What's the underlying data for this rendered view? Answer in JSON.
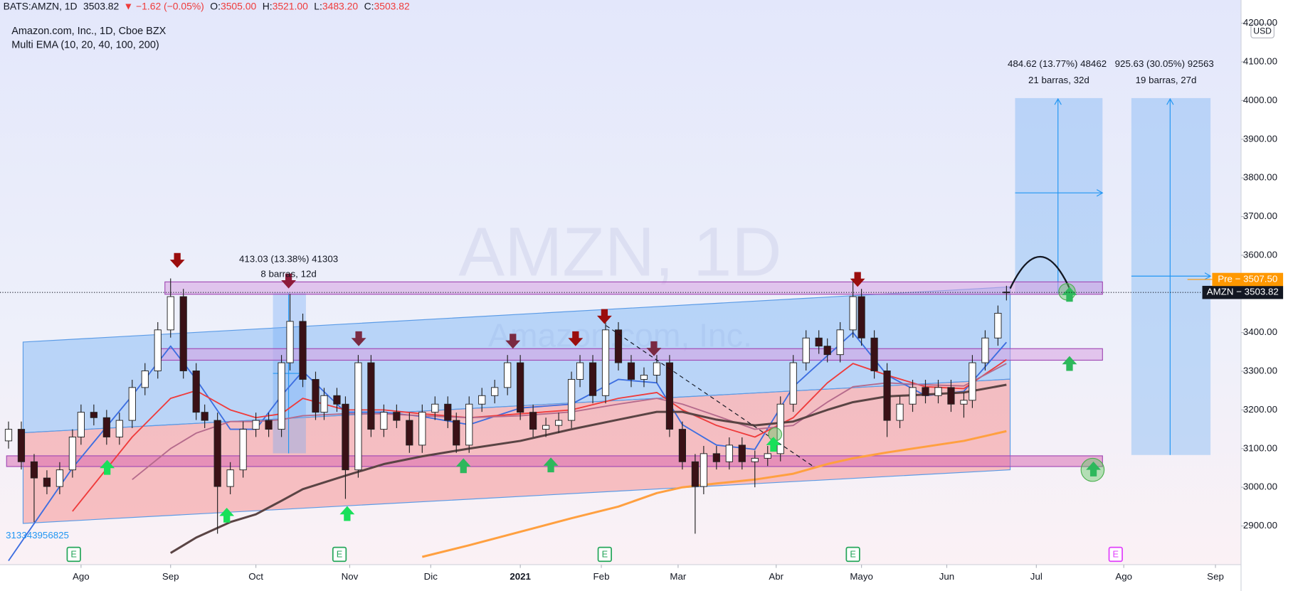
{
  "header": {
    "symbol": "BATS:AMZN, 1D",
    "last": "3503.82",
    "change": "▼ −1.62 (−0.05%)",
    "ohlc": [
      {
        "label": "O:",
        "value": "3505.00"
      },
      {
        "label": "H:",
        "value": "3521.00"
      },
      {
        "label": "L:",
        "value": "3483.20"
      },
      {
        "label": "C:",
        "value": "3503.82"
      }
    ]
  },
  "chart_data": {
    "type": "candlestick",
    "title": "Amazon.com, Inc., 1D, Cboe BZX",
    "subtitle": "Multi EMA (10, 20, 40, 100, 200)",
    "watermark": "AMZN, 1D",
    "watermark_sub": "Amazon.com, Inc.",
    "y_unit": "USD",
    "left_label": "313343956825",
    "up_color": "#ffffff",
    "down_color": "#3a1116",
    "x": [
      0,
      3,
      6,
      9,
      12,
      15,
      17,
      20,
      23,
      26,
      29,
      32,
      35,
      38,
      41,
      44,
      46,
      49,
      52,
      55,
      58,
      61,
      64,
      66,
      69,
      72,
      74,
      77,
      79,
      82,
      85,
      88,
      91,
      94,
      97,
      100,
      103,
      105,
      108,
      111,
      114,
      117,
      120,
      123,
      126,
      129,
      132,
      134,
      137,
      140,
      143,
      146,
      149,
      152,
      155,
      158,
      161,
      163,
      166,
      169,
      172,
      175,
      178,
      181,
      184,
      187,
      190,
      192,
      195,
      198,
      200,
      203,
      206,
      209,
      212,
      215,
      218,
      221,
      224,
      226,
      229,
      232,
      234
    ],
    "open": [
      3120,
      3150,
      3066,
      3024,
      3002,
      3045,
      3130,
      3194,
      3180,
      3130,
      3173,
      3258,
      3301,
      3407,
      3493,
      3301,
      3194,
      3173,
      3002,
      3045,
      3150,
      3173,
      3150,
      3322,
      3429,
      3279,
      3194,
      3237,
      3215,
      3045,
      3322,
      3150,
      3194,
      3173,
      3109,
      3194,
      3215,
      3173,
      3109,
      3215,
      3237,
      3258,
      3322,
      3194,
      3150,
      3160,
      3173,
      3279,
      3322,
      3237,
      3407,
      3322,
      3279,
      3290,
      3322,
      3150,
      3066,
      3002,
      3087,
      3066,
      3109,
      3066,
      3075,
      3087,
      3215,
      3322,
      3386,
      3365,
      3343,
      3407,
      3493,
      3386,
      3301,
      3173,
      3215,
      3258,
      3237,
      3258,
      3215,
      3225,
      3322,
      3386,
      3505
    ],
    "high": [
      3170,
      3170,
      3086,
      3044,
      3065,
      3150,
      3214,
      3214,
      3200,
      3193,
      3278,
      3321,
      3427,
      3540,
      3513,
      3321,
      3214,
      3193,
      3065,
      3170,
      3193,
      3193,
      3342,
      3500,
      3449,
      3299,
      3257,
      3257,
      3235,
      3342,
      3342,
      3214,
      3214,
      3193,
      3214,
      3235,
      3235,
      3193,
      3235,
      3257,
      3278,
      3342,
      3342,
      3214,
      3180,
      3193,
      3299,
      3342,
      3342,
      3427,
      3427,
      3342,
      3310,
      3342,
      3342,
      3170,
      3086,
      3107,
      3107,
      3129,
      3129,
      3095,
      3107,
      3235,
      3342,
      3406,
      3406,
      3385,
      3427,
      3540,
      3513,
      3406,
      3321,
      3235,
      3278,
      3278,
      3278,
      3278,
      3245,
      3342,
      3406,
      3470,
      3521
    ],
    "low": [
      3100,
      3046,
      2910,
      2982,
      2982,
      3025,
      3110,
      3160,
      3110,
      3110,
      3153,
      3238,
      3281,
      3387,
      3281,
      3174,
      3153,
      2880,
      2982,
      3025,
      3130,
      3130,
      3130,
      3302,
      3259,
      3174,
      3174,
      3195,
      2970,
      3025,
      3130,
      3130,
      3153,
      3089,
      3089,
      3174,
      3153,
      3089,
      3089,
      3195,
      3217,
      3238,
      3174,
      3130,
      3130,
      3140,
      3153,
      3259,
      3217,
      3217,
      3302,
      3259,
      3259,
      3270,
      3130,
      3046,
      2880,
      2982,
      3046,
      3046,
      3046,
      3000,
      3055,
      3067,
      3195,
      3302,
      3345,
      3323,
      3323,
      3387,
      3366,
      3281,
      3130,
      3153,
      3195,
      3217,
      3217,
      3195,
      3180,
      3205,
      3302,
      3366,
      3483.2
    ],
    "close": [
      3150,
      3066,
      3024,
      3002,
      3045,
      3130,
      3194,
      3180,
      3130,
      3173,
      3258,
      3301,
      3407,
      3493,
      3301,
      3194,
      3173,
      3002,
      3045,
      3150,
      3173,
      3150,
      3322,
      3429,
      3279,
      3194,
      3237,
      3215,
      3045,
      3322,
      3150,
      3194,
      3173,
      3109,
      3194,
      3215,
      3173,
      3109,
      3215,
      3237,
      3258,
      3322,
      3194,
      3150,
      3160,
      3173,
      3279,
      3322,
      3237,
      3407,
      3322,
      3279,
      3290,
      3322,
      3150,
      3066,
      3002,
      3087,
      3066,
      3109,
      3066,
      3075,
      3087,
      3215,
      3322,
      3386,
      3365,
      3343,
      3407,
      3493,
      3386,
      3301,
      3173,
      3215,
      3258,
      3237,
      3258,
      3215,
      3225,
      3322,
      3386,
      3450,
      3503.82
    ],
    "series": [
      {
        "color": "#3d6ee0",
        "width": 1.6,
        "x": [
          0,
          15,
          29,
          38,
          44,
          52,
          58,
          64,
          69,
          79,
          88,
          97,
          108,
          120,
          132,
          143,
          152,
          158,
          166,
          175,
          184,
          192,
          198,
          206,
          215,
          224,
          234
        ],
        "values": [
          2810,
          3050,
          3237,
          3365,
          3279,
          3150,
          3150,
          3237,
          3300,
          3194,
          3194,
          3183,
          3162,
          3205,
          3215,
          3279,
          3270,
          3162,
          3109,
          3098,
          3260,
          3340,
          3400,
          3290,
          3237,
          3248,
          3375
        ]
      },
      {
        "color": "#ef3b3b",
        "width": 1.6,
        "x": [
          0,
          15,
          29,
          38,
          44,
          52,
          58,
          64,
          69,
          79,
          88,
          97,
          108,
          120,
          132,
          143,
          152,
          158,
          166,
          175,
          184,
          192,
          198,
          206,
          215,
          224,
          234
        ],
        "values": [
          null,
          2938,
          3130,
          3230,
          3250,
          3200,
          3180,
          3190,
          3230,
          3200,
          3200,
          3190,
          3180,
          3190,
          3200,
          3230,
          3245,
          3200,
          3160,
          3130,
          3180,
          3270,
          3320,
          3290,
          3260,
          3255,
          3330
        ]
      },
      {
        "color": "#b56a8c",
        "width": 1.6,
        "x": [
          0,
          15,
          29,
          38,
          44,
          52,
          58,
          64,
          69,
          79,
          88,
          97,
          108,
          120,
          132,
          143,
          152,
          158,
          166,
          175,
          184,
          192,
          198,
          206,
          215,
          224,
          234
        ],
        "values": [
          null,
          null,
          3020,
          3100,
          3140,
          3170,
          3170,
          3175,
          3185,
          3190,
          3190,
          3185,
          3180,
          3185,
          3195,
          3215,
          3230,
          3215,
          3185,
          3150,
          3160,
          3220,
          3260,
          3270,
          3265,
          3262,
          3320
        ]
      },
      {
        "color": "#5a4444",
        "width": 2.6,
        "x": [
          0,
          15,
          29,
          38,
          44,
          52,
          58,
          64,
          69,
          79,
          88,
          97,
          108,
          120,
          132,
          143,
          152,
          158,
          166,
          175,
          184,
          192,
          198,
          206,
          215,
          224,
          234
        ],
        "values": [
          null,
          null,
          null,
          2830,
          2870,
          2910,
          2930,
          2965,
          2995,
          3030,
          3060,
          3080,
          3100,
          3120,
          3150,
          3175,
          3195,
          3195,
          3175,
          3160,
          3170,
          3200,
          3220,
          3235,
          3240,
          3245,
          3265
        ]
      },
      {
        "color": "#ffa040",
        "width": 2.6,
        "x": [
          0,
          15,
          29,
          38,
          44,
          52,
          58,
          64,
          69,
          79,
          88,
          97,
          108,
          120,
          132,
          143,
          152,
          158,
          166,
          175,
          184,
          192,
          198,
          206,
          215,
          224,
          234
        ],
        "values": [
          null,
          null,
          null,
          null,
          null,
          null,
          null,
          null,
          null,
          null,
          null,
          2820,
          2850,
          2885,
          2920,
          2950,
          2985,
          3000,
          3010,
          3020,
          3035,
          3060,
          3075,
          3090,
          3105,
          3120,
          3145
        ]
      }
    ],
    "xlim": [
      -2,
      289
    ],
    "xticks": [
      {
        "value": 17,
        "label": "Ago"
      },
      {
        "value": 38,
        "label": "Sep"
      },
      {
        "value": 58,
        "label": "Oct"
      },
      {
        "value": 80,
        "label": "Nov"
      },
      {
        "value": 99,
        "label": "Dic"
      },
      {
        "value": 120,
        "label": "2021"
      },
      {
        "value": 139,
        "label": "Feb"
      },
      {
        "value": 157,
        "label": "Mar"
      },
      {
        "value": 180,
        "label": "Abr"
      },
      {
        "value": 200,
        "label": "Mayo"
      },
      {
        "value": 220,
        "label": "Jun"
      },
      {
        "value": 241,
        "label": "Jul"
      },
      {
        "value": 261.5,
        "label": "Ago"
      },
      {
        "value": 283,
        "label": "Sep"
      }
    ],
    "ylim": [
      2800,
      4260
    ],
    "yticks": [
      {
        "value": 2900,
        "label": "2900.00"
      },
      {
        "value": 3000,
        "label": "3000.00"
      },
      {
        "value": 3100,
        "label": "3100.00"
      },
      {
        "value": 3200,
        "label": "3200.00"
      },
      {
        "value": 3300,
        "label": "3300.00"
      },
      {
        "value": 3400,
        "label": "3400.00"
      },
      {
        "value": 3500,
        "label": "3500.00"
      },
      {
        "value": 3600,
        "label": "3600.00"
      },
      {
        "value": 3700,
        "label": "3700.00"
      },
      {
        "value": 3800,
        "label": "3800.00"
      },
      {
        "value": 3900,
        "label": "3900.00"
      },
      {
        "value": 4000,
        "label": "4000.00"
      },
      {
        "value": 4100,
        "label": "4100.00"
      },
      {
        "value": 4200,
        "label": "4200.00"
      }
    ],
    "price_line": {
      "value": 3503.82,
      "text": "AMZN − 3503.82",
      "color": "#131722"
    },
    "pre_tag": {
      "value": 3507.5,
      "text": "Pre − 3507.50",
      "color": "#ff9800"
    },
    "earnings": {
      "label": "E",
      "x": [
        15.3,
        77.6,
        139.8,
        198,
        259.6
      ],
      "colors": [
        "#26a65b",
        "#26a65b",
        "#26a65b",
        "#26a65b",
        "#e040fb"
      ]
    },
    "measurements": [
      {
        "line1": "413.03 (13.38%) 41303",
        "line2": "8 barras, 12d"
      },
      {
        "line1": "484.62 (13.77%) 48462",
        "line2": "21 barras, 32d"
      },
      {
        "line1": "925.63 (30.05%) 92563",
        "line2": "19 barras, 27d"
      }
    ]
  }
}
